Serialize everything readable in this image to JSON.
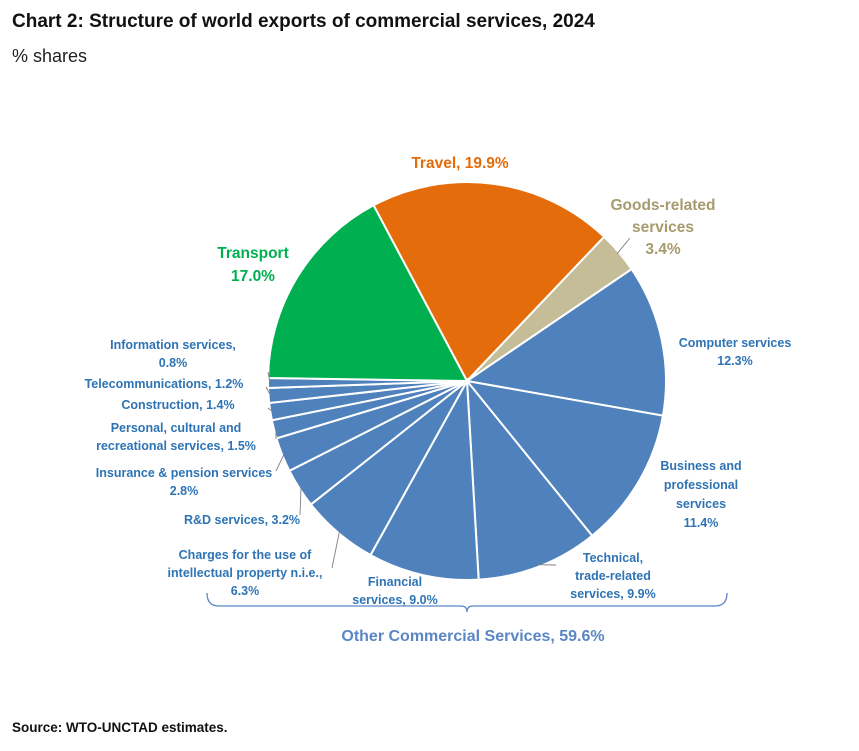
{
  "header": {
    "title": "Chart 2: Structure of world exports of commercial services, 2024",
    "subtitle": "% shares"
  },
  "footer": {
    "source": "Source: WTO-UNCTAD estimates."
  },
  "colors": {
    "transport": "#00b050",
    "travel": "#e46c0a",
    "goods": "#c4bd97",
    "other": "#4f81bd",
    "goods_label": "#a69b6e",
    "other_label": "#2e74b5",
    "group_label": "#5b86c5"
  },
  "chart_data": {
    "type": "pie",
    "title": "Structure of world exports of commercial services, 2024",
    "unit": "% shares",
    "slices": [
      {
        "id": "travel",
        "name": "Travel",
        "value": 19.9,
        "color": "#e46c0a",
        "label_lines": [
          "Travel, 19.9%"
        ]
      },
      {
        "id": "goods",
        "name": "Goods-related services",
        "value": 3.4,
        "color": "#c4bd97",
        "label_lines": [
          "Goods-related",
          "services",
          "3.4%"
        ]
      },
      {
        "id": "computer",
        "name": "Computer services",
        "value": 12.3,
        "color": "#4f81bd",
        "label_lines": [
          "Computer services",
          "12.3%"
        ]
      },
      {
        "id": "business",
        "name": "Business and professional services",
        "value": 11.4,
        "color": "#4f81bd",
        "label_lines": [
          "Business and",
          "professional",
          "services",
          "11.4%"
        ]
      },
      {
        "id": "technical",
        "name": "Technical, trade-related services",
        "value": 9.9,
        "color": "#4f81bd",
        "label_lines": [
          "Technical,",
          "trade-related",
          "services, 9.9%"
        ]
      },
      {
        "id": "financial",
        "name": "Financial services",
        "value": 9.0,
        "color": "#4f81bd",
        "label_lines": [
          "Financial",
          "services, 9.0%"
        ]
      },
      {
        "id": "charges",
        "name": "Charges for the use of intellectual property n.i.e.",
        "value": 6.3,
        "color": "#4f81bd",
        "label_lines": [
          "Charges for the use of",
          "intellectual property n.i.e.,",
          "6.3%"
        ]
      },
      {
        "id": "rnd",
        "name": "R&D services",
        "value": 3.2,
        "color": "#4f81bd",
        "label_lines": [
          "R&D services, 3.2%"
        ]
      },
      {
        "id": "insurance",
        "name": "Insurance & pension services",
        "value": 2.8,
        "color": "#4f81bd",
        "label_lines": [
          "Insurance & pension services",
          "2.8%"
        ]
      },
      {
        "id": "personal",
        "name": "Personal, cultural and recreational services",
        "value": 1.5,
        "color": "#4f81bd",
        "label_lines": [
          "Personal, cultural and",
          "recreational services, 1.5%"
        ]
      },
      {
        "id": "construction",
        "name": "Construction",
        "value": 1.4,
        "color": "#4f81bd",
        "label_lines": [
          "Construction, 1.4%"
        ]
      },
      {
        "id": "telecom",
        "name": "Telecommunications",
        "value": 1.2,
        "color": "#4f81bd",
        "label_lines": [
          "Telecommunications, 1.2%"
        ]
      },
      {
        "id": "information",
        "name": "Information services",
        "value": 0.8,
        "color": "#4f81bd",
        "label_lines": [
          "Information services,",
          "0.8%"
        ]
      },
      {
        "id": "transport",
        "name": "Transport",
        "value": 17.0,
        "color": "#00b050",
        "label_lines": [
          "Transport",
          "17.0%"
        ]
      }
    ],
    "group_label": "Other Commercial Services, 59.6%"
  }
}
